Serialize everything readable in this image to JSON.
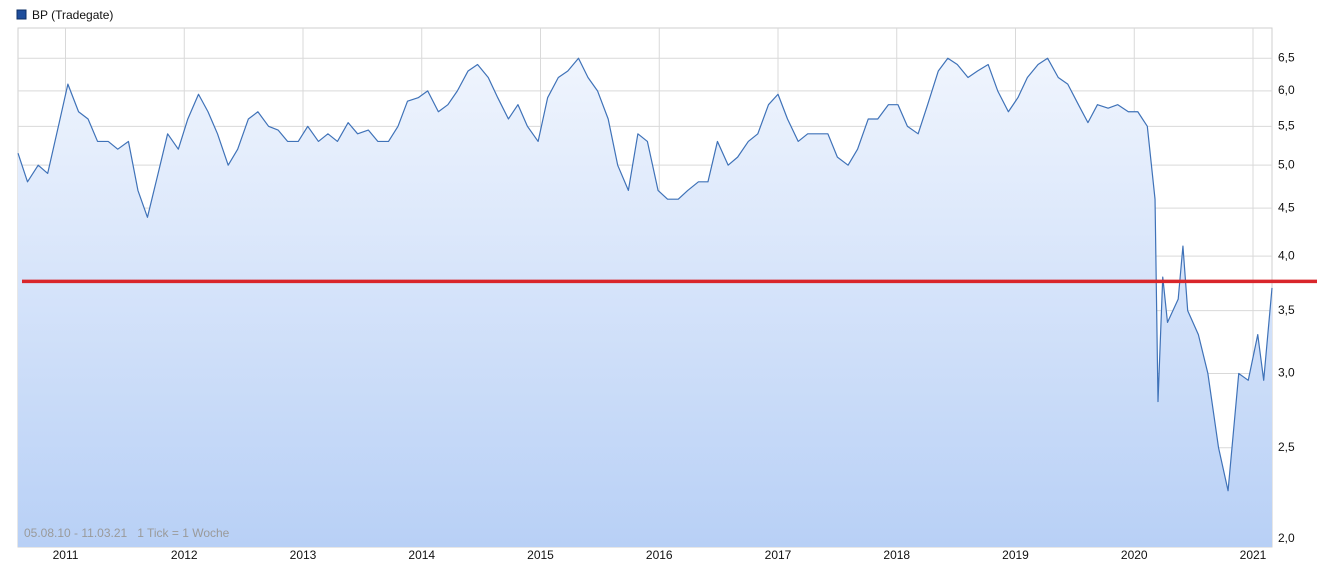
{
  "chart_data": {
    "type": "line",
    "legend": "top-left",
    "annotation": "05.08.10 - 11.03.21   1 Tick = 1 Woche",
    "ylog": true,
    "grid": true,
    "xlim": [
      2010.6,
      2021.16
    ],
    "xticks": [
      2011,
      2012,
      2013,
      2014,
      2015,
      2016,
      2017,
      2018,
      2019,
      2020,
      2021
    ],
    "ylim": [
      1.96,
      7.0
    ],
    "yticks": [
      {
        "value": 2,
        "label": "2,0"
      },
      {
        "value": 2.5,
        "label": "2,5"
      },
      {
        "value": 3,
        "label": "3,0"
      },
      {
        "value": 3.5,
        "label": "3,5"
      },
      {
        "value": 4,
        "label": "4,0"
      },
      {
        "value": 4.5,
        "label": "4,5"
      },
      {
        "value": 5,
        "label": "5,0"
      },
      {
        "value": 5.5,
        "label": "5,5"
      },
      {
        "value": 6,
        "label": "6,0"
      },
      {
        "value": 6.5,
        "label": "6,5"
      }
    ],
    "reference_line": {
      "value": 3.76,
      "color": "#d9262b"
    },
    "x": [
      2010.6,
      2010.68,
      2010.77,
      2010.85,
      2010.94,
      2011.02,
      2011.11,
      2011.19,
      2011.27,
      2011.36,
      2011.44,
      2011.53,
      2011.61,
      2011.69,
      2011.78,
      2011.86,
      2011.95,
      2012.03,
      2012.12,
      2012.2,
      2012.28,
      2012.37,
      2012.45,
      2012.54,
      2012.62,
      2012.71,
      2012.79,
      2012.87,
      2012.96,
      2013.04,
      2013.13,
      2013.21,
      2013.29,
      2013.38,
      2013.46,
      2013.55,
      2013.63,
      2013.72,
      2013.8,
      2013.88,
      2013.97,
      2014.05,
      2014.14,
      2014.22,
      2014.3,
      2014.39,
      2014.47,
      2014.56,
      2014.64,
      2014.73,
      2014.81,
      2014.89,
      2014.98,
      2015.06,
      2015.15,
      2015.23,
      2015.32,
      2015.4,
      2015.48,
      2015.57,
      2015.65,
      2015.74,
      2015.82,
      2015.9,
      2015.99,
      2016.07,
      2016.16,
      2016.24,
      2016.33,
      2016.41,
      2016.49,
      2016.58,
      2016.66,
      2016.75,
      2016.83,
      2016.92,
      2017.0,
      2017.08,
      2017.17,
      2017.25,
      2017.34,
      2017.42,
      2017.5,
      2017.59,
      2017.67,
      2017.76,
      2017.84,
      2017.93,
      2018.01,
      2018.09,
      2018.18,
      2018.26,
      2018.35,
      2018.43,
      2018.51,
      2018.6,
      2018.68,
      2018.77,
      2018.85,
      2018.94,
      2019.02,
      2019.1,
      2019.19,
      2019.27,
      2019.36,
      2019.44,
      2019.53,
      2019.61,
      2019.69,
      2019.78,
      2019.86,
      2019.95,
      2020.03,
      2020.11,
      2020.175,
      2020.2,
      2020.24,
      2020.28,
      2020.37,
      2020.41,
      2020.45,
      2020.54,
      2020.62,
      2020.71,
      2020.79,
      2020.88,
      2020.96,
      2021.04,
      2021.09,
      2021.16
    ],
    "series": [
      {
        "name": "BP (Tradegate)",
        "color": "#3f72b8",
        "values": [
          5.15,
          4.8,
          5.0,
          4.9,
          5.5,
          6.1,
          5.7,
          5.6,
          5.3,
          5.3,
          5.2,
          5.3,
          4.7,
          4.4,
          4.9,
          5.4,
          5.2,
          5.6,
          5.95,
          5.7,
          5.4,
          5.0,
          5.2,
          5.6,
          5.7,
          5.5,
          5.45,
          5.3,
          5.3,
          5.5,
          5.3,
          5.4,
          5.3,
          5.55,
          5.4,
          5.45,
          5.3,
          5.3,
          5.5,
          5.85,
          5.9,
          6.0,
          5.7,
          5.8,
          6.0,
          6.3,
          6.4,
          6.2,
          5.9,
          5.6,
          5.8,
          5.5,
          5.3,
          5.9,
          6.2,
          6.3,
          6.5,
          6.2,
          6.0,
          5.6,
          5.0,
          4.7,
          5.4,
          5.3,
          4.7,
          4.6,
          4.6,
          4.7,
          4.8,
          4.8,
          5.3,
          5.0,
          5.1,
          5.3,
          5.4,
          5.8,
          5.95,
          5.6,
          5.3,
          5.4,
          5.4,
          5.4,
          5.1,
          5.0,
          5.2,
          5.6,
          5.6,
          5.8,
          5.8,
          5.5,
          5.4,
          5.8,
          6.3,
          6.5,
          6.4,
          6.2,
          6.3,
          6.4,
          6.0,
          5.7,
          5.9,
          6.2,
          6.4,
          6.5,
          6.2,
          6.1,
          5.8,
          5.55,
          5.8,
          5.75,
          5.8,
          5.7,
          5.7,
          5.5,
          4.6,
          2.8,
          3.8,
          3.4,
          3.6,
          4.1,
          3.5,
          3.3,
          3.0,
          2.5,
          2.25,
          3.0,
          2.95,
          3.3,
          2.95,
          3.7
        ]
      }
    ]
  }
}
